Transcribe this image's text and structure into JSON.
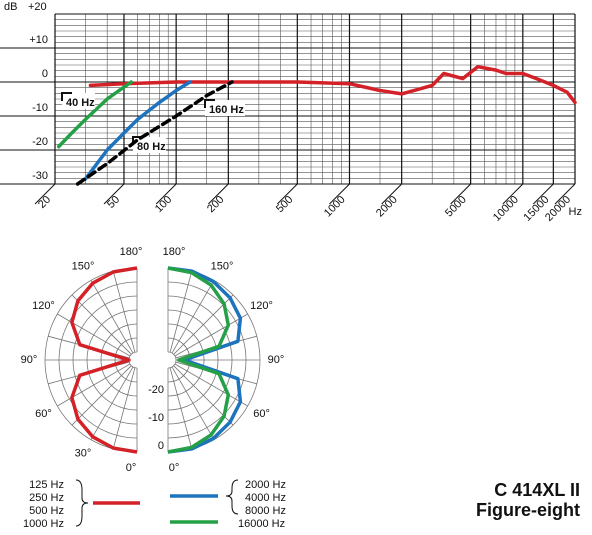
{
  "chart_data": [
    {
      "type": "line",
      "xscale": "log",
      "ylabel": "dB",
      "xunit": "Hz",
      "xlim": [
        20,
        20000
      ],
      "ylim": [
        -30,
        20
      ],
      "xticks": [
        20,
        50,
        100,
        200,
        500,
        1000,
        2000,
        5000,
        10000,
        15000,
        20000
      ],
      "x_minor_ticks": [
        30,
        40,
        60,
        70,
        80,
        90,
        150,
        300,
        400,
        600,
        700,
        800,
        900,
        1500,
        3000,
        4000,
        6000,
        7000,
        8000,
        9000
      ],
      "yticks": [
        {
          "value": 20,
          "label": "+20"
        },
        {
          "value": 10,
          "label": "+10"
        },
        0,
        -10,
        -20,
        -30
      ],
      "y_minor_divisions": 6,
      "grid": true,
      "series": [
        {
          "color": "#d42027",
          "x": [
            32,
            50,
            100,
            200,
            500,
            1000,
            1500,
            2000,
            3000,
            3500,
            4500,
            5500,
            7000,
            8000,
            10000,
            12000,
            15000,
            18000,
            20000
          ],
          "values": [
            -1,
            -0.5,
            0,
            0,
            0,
            -0.5,
            -2.5,
            -3.5,
            -1,
            2.5,
            1,
            4.5,
            3.5,
            2.5,
            2.5,
            1,
            -1,
            -3,
            -6
          ]
        },
        {
          "color": "#24a046",
          "label": "40 Hz",
          "x": [
            21,
            25,
            30,
            40,
            50,
            55
          ],
          "values": [
            -19,
            -15,
            -11,
            -5,
            -1.5,
            0
          ]
        },
        {
          "color": "#1e73be",
          "label": "80 Hz",
          "x": [
            30,
            40,
            50,
            60,
            80,
            100,
            120
          ],
          "values": [
            -28.5,
            -20,
            -15,
            -11,
            -6,
            -2.5,
            0
          ]
        },
        {
          "color": "#000000",
          "dashed": true,
          "label": "160 Hz",
          "x": [
            27,
            40,
            60,
            100,
            150,
            210
          ],
          "values": [
            -30,
            -24,
            -17,
            -10,
            -4,
            0
          ]
        }
      ]
    },
    {
      "type": "polar",
      "rlim": [
        -30,
        0
      ],
      "rgrid": [
        0,
        -5,
        -10,
        -15,
        -20,
        -25,
        -30
      ],
      "rticks": [
        0,
        -10,
        -20
      ],
      "angle_ticks": [
        {
          "value": 0,
          "label": "0°"
        },
        {
          "value": 30,
          "label": "30°"
        },
        {
          "value": 60,
          "label": "60°"
        },
        {
          "value": 90,
          "label": "90°"
        },
        {
          "value": 120,
          "label": "120°"
        },
        {
          "value": 150,
          "label": "150°"
        },
        {
          "value": 180,
          "label": "180°"
        }
      ],
      "angles": [
        0,
        15,
        30,
        45,
        60,
        75,
        90,
        105,
        120,
        135,
        150,
        165,
        180
      ],
      "series": [
        {
          "side": "left",
          "color": "#d42027",
          "values": [
            0,
            -0.3,
            -1.2,
            -3,
            -6,
            -11.7,
            -30,
            -11.7,
            -6,
            -3,
            -1.2,
            -0.3,
            0
          ]
        },
        {
          "side": "right",
          "color": "#1e73be",
          "values": [
            0,
            0,
            -0.5,
            -1.5,
            -3,
            -7,
            -27,
            -7,
            -3,
            -1.5,
            -0.5,
            0,
            0
          ]
        },
        {
          "side": "right",
          "color": "#24a046",
          "values": [
            0,
            -0.5,
            -2,
            -4.5,
            -8,
            -14,
            -29,
            -14,
            -8,
            -4.5,
            -2,
            -0.5,
            0
          ]
        }
      ],
      "legend": [
        {
          "color": "#d42027",
          "labels": [
            "125 Hz",
            "250 Hz",
            "500 Hz",
            "1000 Hz"
          ]
        },
        {
          "color": "#1e73be",
          "labels": [
            "2000 Hz",
            "4000 Hz",
            "8000 Hz"
          ]
        },
        {
          "color": "#24a046",
          "labels": [
            "16000 Hz"
          ]
        }
      ],
      "title": "C 414XL II",
      "subtitle": "Figure-eight"
    }
  ]
}
